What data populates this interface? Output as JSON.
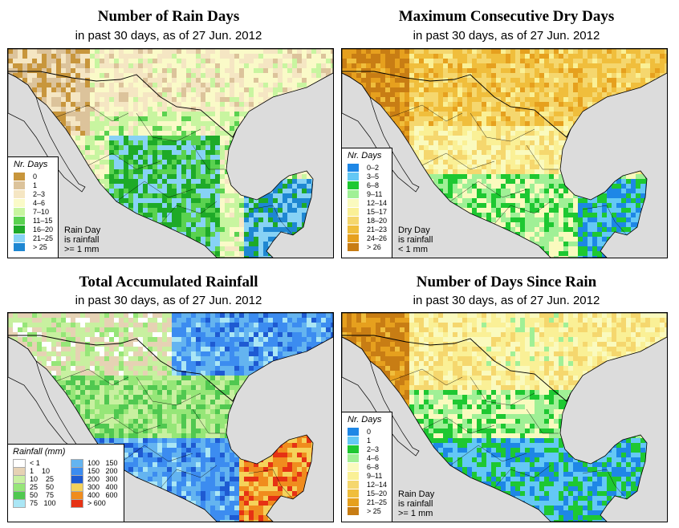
{
  "panels": [
    {
      "id": "rain_days",
      "title": "Number of Rain Days",
      "subtitle": "in past 30 days, as of  27 Jun. 2012",
      "legend_title": "Nr. Days",
      "legend": [
        {
          "label": "0",
          "color": "#c8963c"
        },
        {
          "label": "1",
          "color": "#dcc39b"
        },
        {
          "label": "2–3",
          "color": "#f5e6c3"
        },
        {
          "label": "4–6",
          "color": "#fafac8"
        },
        {
          "label": "7–10",
          "color": "#c8f5a0"
        },
        {
          "label": "11–15",
          "color": "#5ad250"
        },
        {
          "label": "16–20",
          "color": "#1eaa28"
        },
        {
          "label": "21–25",
          "color": "#87d2f5"
        },
        {
          "label": "> 25",
          "color": "#1e87d2"
        }
      ],
      "note": [
        "Rain Day",
        "is rainfall",
        ">= 1 mm"
      ]
    },
    {
      "id": "dry_days",
      "title": "Maximum Consecutive Dry Days",
      "subtitle": "in past 30 days, as of  27 Jun. 2012",
      "legend_title": "Nr. Days",
      "legend": [
        {
          "label": "0–2",
          "color": "#1e87e6"
        },
        {
          "label": "3–5",
          "color": "#64c8f5"
        },
        {
          "label": "6–8",
          "color": "#1ec832"
        },
        {
          "label": "9–11",
          "color": "#a0f096"
        },
        {
          "label": "12–14",
          "color": "#fafabe"
        },
        {
          "label": "15–17",
          "color": "#faf096"
        },
        {
          "label": "18–20",
          "color": "#f5d76e"
        },
        {
          "label": "21–23",
          "color": "#f0be3c"
        },
        {
          "label": "24–26",
          "color": "#e6a01e"
        },
        {
          "label": "> 26",
          "color": "#c87d14"
        }
      ],
      "note": [
        "Dry Day",
        "is rainfall",
        "< 1 mm"
      ]
    },
    {
      "id": "total_rain",
      "title": "Total Accumulated Rainfall",
      "subtitle": "in past 30 days, as of  27 Jun. 2012",
      "legend_title": "Rainfall (mm)",
      "legend": [
        {
          "label": "< 1",
          "color": "#ffffff"
        },
        {
          "label": "1    10",
          "color": "#e6d2b4"
        },
        {
          "label": "10    25",
          "color": "#c8f0a0"
        },
        {
          "label": "25    50",
          "color": "#96e678"
        },
        {
          "label": "50    75",
          "color": "#50c850"
        },
        {
          "label": "75   100",
          "color": "#aae6f5"
        },
        {
          "label": "100   150",
          "color": "#64b4f0"
        },
        {
          "label": "150   200",
          "color": "#3c8cf0"
        },
        {
          "label": "200   300",
          "color": "#1e5ad2"
        },
        {
          "label": "300   400",
          "color": "#f5d25a"
        },
        {
          "label": "400   600",
          "color": "#f08c1e"
        },
        {
          "label": "> 600",
          "color": "#e63214"
        }
      ]
    },
    {
      "id": "days_since_rain",
      "title": "Number of Days Since Rain",
      "subtitle": "in past 30 days, as of  27 Jun. 2012",
      "legend_title": "Nr. Days",
      "legend": [
        {
          "label": "0",
          "color": "#1e87e6"
        },
        {
          "label": "1",
          "color": "#64c8f5"
        },
        {
          "label": "2–3",
          "color": "#1ec832"
        },
        {
          "label": "4–6",
          "color": "#a0f096"
        },
        {
          "label": "6–8",
          "color": "#fafabe"
        },
        {
          "label": "9–11",
          "color": "#faf096"
        },
        {
          "label": "12–14",
          "color": "#f5d76e"
        },
        {
          "label": "15–20",
          "color": "#f0be3c"
        },
        {
          "label": "21–25",
          "color": "#e6a01e"
        },
        {
          "label": "> 25",
          "color": "#c87d14"
        }
      ],
      "note": [
        "Rain Day",
        "is rainfall",
        ">= 1 mm"
      ]
    }
  ]
}
